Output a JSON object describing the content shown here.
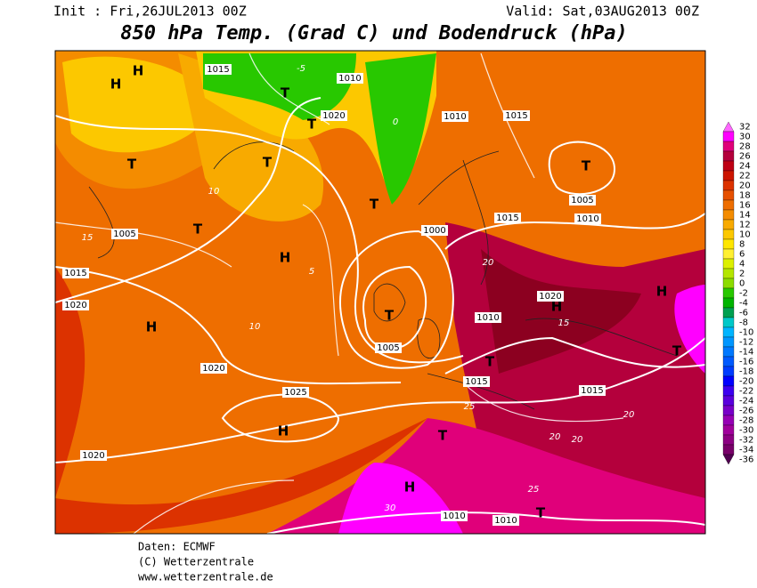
{
  "header": {
    "init": "Init : Fri,26JUL2013 00Z",
    "valid": "Valid: Sat,03AUG2013 00Z",
    "title": "850 hPa Temp. (Grad C) und Bodendruck (hPa)"
  },
  "colorbar": {
    "ticks": [
      32,
      30,
      28,
      26,
      24,
      22,
      20,
      18,
      16,
      14,
      12,
      10,
      8,
      6,
      4,
      2,
      0,
      -2,
      -4,
      -6,
      -8,
      -10,
      -12,
      -14,
      -16,
      -18,
      -20,
      -22,
      -24,
      -26,
      -28,
      -30,
      -32,
      -34,
      -36
    ],
    "colors": [
      "#ff66ff",
      "#ff00ff",
      "#e0007a",
      "#b4003c",
      "#be0014",
      "#cc1400",
      "#dc3200",
      "#e65000",
      "#ee6e00",
      "#f48c00",
      "#f8aa00",
      "#fcc800",
      "#ffe600",
      "#fff032",
      "#dcf000",
      "#b4e600",
      "#8cdc00",
      "#28c800",
      "#00b400",
      "#00a050",
      "#00c8c8",
      "#00b4ff",
      "#0096ff",
      "#0078ff",
      "#005aff",
      "#003cff",
      "#0000ff",
      "#3c00f0",
      "#5a00dc",
      "#7800c8",
      "#9600b4",
      "#a0009b",
      "#8c0082",
      "#780069",
      "#500050"
    ]
  },
  "map_labels": [
    "H",
    "T",
    "H",
    "T",
    "T",
    "H",
    "T",
    "T",
    "H",
    "H",
    "T",
    "T",
    "H",
    "T",
    "H",
    "T",
    "T",
    "T",
    "H",
    "T",
    "1015",
    "1020",
    "1010",
    "1005",
    "1015",
    "1020",
    "1005",
    "1010",
    "1015",
    "1020",
    "1025",
    "1020",
    "1015",
    "1010",
    "1005",
    "1000",
    "1015",
    "1010",
    "1020",
    "1015",
    "1010",
    "1010",
    "0",
    "-5",
    "5",
    "10",
    "15",
    "20",
    "25",
    "30",
    "10",
    "15",
    "20",
    "20",
    "25",
    "20"
  ],
  "footer": [
    "Daten: ECMWF",
    "(C) Wetterzentrale",
    "www.wetterzentrale.de"
  ]
}
